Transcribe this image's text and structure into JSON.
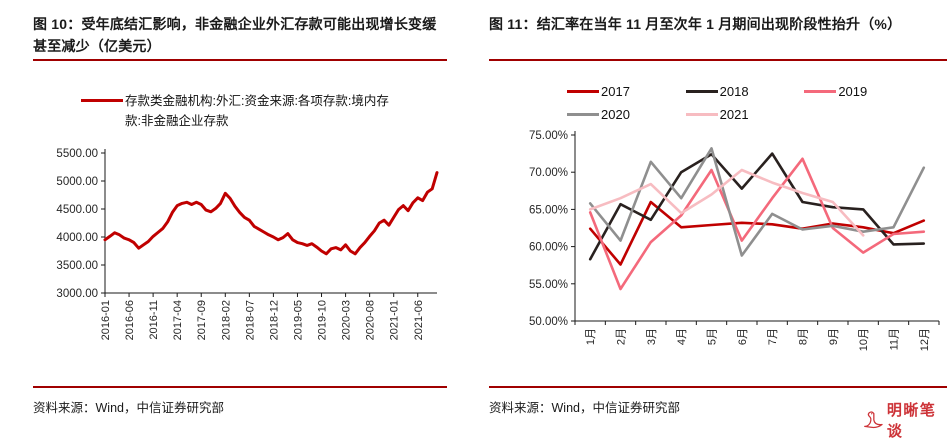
{
  "accent_color": "#a00000",
  "figure10": {
    "title": "图 10：受年底结汇影响，非金融企业外汇存款可能出现增长变缓甚至减少（亿美元）",
    "legend_label": "存款类金融机构:外汇:资金来源:各项存款:境内存款:非金融企业存款",
    "source": "资料来源：Wind，中信证券研究部"
  },
  "figure11": {
    "title": "图 11：结汇率在当年 11 月至次年 1 月期间出现阶段性抬升（%）",
    "source": "资料来源：Wind，中信证券研究部"
  },
  "logo": {
    "text": "明晰笔谈",
    "icon": "swan-bird-icon",
    "color": "#cd3338"
  },
  "chart_data": [
    {
      "id": "fig10",
      "type": "line",
      "title": "存款类金融机构外汇非金融企业存款（亿美元）",
      "ylabel": "亿美元",
      "ylim": [
        3000,
        5500
      ],
      "ytick_step": 500,
      "ytick_labels": [
        "3000.00",
        "3500.00",
        "4000.00",
        "4500.00",
        "5000.00",
        "5500.00"
      ],
      "x_labels": [
        "2016-01",
        "2016-06",
        "2016-11",
        "2017-04",
        "2017-09",
        "2018-02",
        "2018-07",
        "2018-12",
        "2019-05",
        "2019-10",
        "2020-03",
        "2020-08",
        "2021-01",
        "2021-06"
      ],
      "x_label_every": 5,
      "grid": false,
      "legend_position": "top",
      "series": [
        {
          "name": "存款类金融机构:外汇:资金来源:各项存款:境内存款:非金融企业存款",
          "color": "#c00000",
          "values": [
            3950,
            4010,
            4075,
            4040,
            3980,
            3950,
            3900,
            3800,
            3860,
            3920,
            4010,
            4080,
            4150,
            4270,
            4440,
            4560,
            4600,
            4620,
            4580,
            4620,
            4580,
            4480,
            4450,
            4510,
            4600,
            4780,
            4690,
            4550,
            4440,
            4350,
            4300,
            4190,
            4140,
            4090,
            4040,
            4000,
            3950,
            3990,
            4060,
            3950,
            3900,
            3880,
            3850,
            3880,
            3820,
            3750,
            3700,
            3790,
            3810,
            3770,
            3860,
            3750,
            3700,
            3810,
            3900,
            4010,
            4110,
            4250,
            4300,
            4210,
            4350,
            4490,
            4560,
            4470,
            4610,
            4700,
            4650,
            4800,
            4860,
            5150
          ]
        }
      ]
    },
    {
      "id": "fig11",
      "type": "line",
      "title": "结汇率（%）",
      "ylim": [
        50,
        75
      ],
      "ytick_step": 5,
      "ytick_labels": [
        "50.00%",
        "55.00%",
        "60.00%",
        "65.00%",
        "70.00%",
        "75.00%"
      ],
      "categories": [
        "1月",
        "2月",
        "3月",
        "4月",
        "5月",
        "6月",
        "7月",
        "8月",
        "9月",
        "10月",
        "11月",
        "12月"
      ],
      "grid": false,
      "legend_position": "top",
      "series": [
        {
          "name": "2017",
          "color": "#c00000",
          "values": [
            62.4,
            57.6,
            66.0,
            62.6,
            62.9,
            63.2,
            63.0,
            62.4,
            63.1,
            62.6,
            61.8,
            63.5
          ]
        },
        {
          "name": "2018",
          "color": "#29211f",
          "values": [
            58.3,
            65.7,
            63.6,
            70.0,
            72.4,
            67.8,
            72.5,
            66.0,
            65.3,
            65.0,
            60.3,
            60.4
          ]
        },
        {
          "name": "2019",
          "color": "#f4697b",
          "values": [
            64.6,
            54.3,
            60.6,
            64.2,
            70.3,
            60.8,
            66.5,
            71.8,
            62.5,
            59.2,
            61.7,
            62.0
          ]
        },
        {
          "name": "2020",
          "color": "#8f8f8f",
          "values": [
            65.8,
            60.8,
            71.4,
            66.5,
            73.2,
            58.8,
            64.4,
            62.3,
            62.8,
            62.0,
            62.6,
            70.6
          ]
        },
        {
          "name": "2021",
          "color": "#f7bcc1",
          "values": [
            65.0,
            66.5,
            68.4,
            64.5,
            67.0,
            70.3,
            68.6,
            67.2,
            66.0,
            61.5
          ]
        }
      ]
    }
  ]
}
